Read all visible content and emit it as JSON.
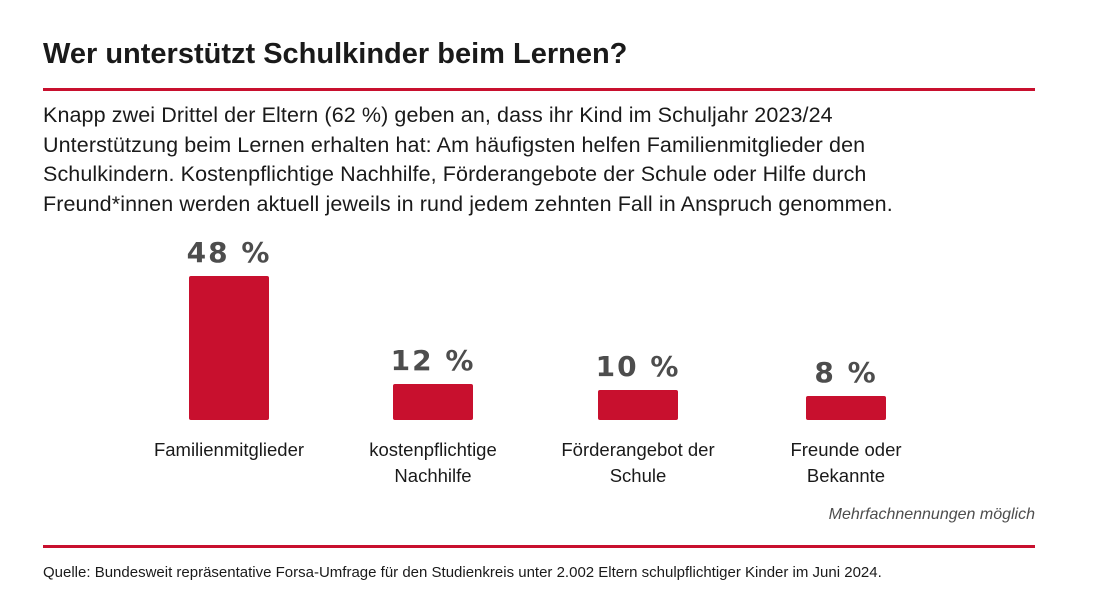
{
  "header": {
    "title": "Wer unterstützt Schulkinder beim Lernen?"
  },
  "lead": {
    "lines": [
      "Knapp zwei Drittel der Eltern (62 %) geben an, dass ihr Kind im Schuljahr 2023/24",
      "Unterstützung beim Lernen erhalten hat: Am häufigsten helfen Familienmitglieder den",
      "Schulkindern. Kostenpflichtige Nachhilfe, Förderangebote der Schule oder Hilfe durch",
      "Freund*innen werden aktuell jeweils in rund jedem zehnten Fall in Anspruch genommen."
    ]
  },
  "chart_data": {
    "type": "bar",
    "categories": [
      [
        "Familienmitglieder"
      ],
      [
        "kostenpflichtige",
        "Nachhilfe"
      ],
      [
        "Förderangebot der",
        "Schule"
      ],
      [
        "Freunde oder",
        "Bekannte"
      ]
    ],
    "values": [
      48,
      12,
      10,
      8
    ],
    "value_labels": [
      "48 %",
      "12 %",
      "10 %",
      "8 %"
    ],
    "unit": "%",
    "ylim": [
      0,
      48
    ],
    "title": "",
    "xlabel": "",
    "ylabel": "",
    "bar_color": "#c8102e",
    "label_color": "#4d4d4d"
  },
  "note": "Mehrfachnennungen möglich",
  "source": "Quelle: Bundesweit repräsentative Forsa-Umfrage für den Studienkreis unter 2.002 Eltern schulpflichtiger Kinder im Juni 2024.",
  "colors": {
    "accent": "#c8102e",
    "text": "#1a1a1a",
    "muted": "#4d4d4d"
  }
}
